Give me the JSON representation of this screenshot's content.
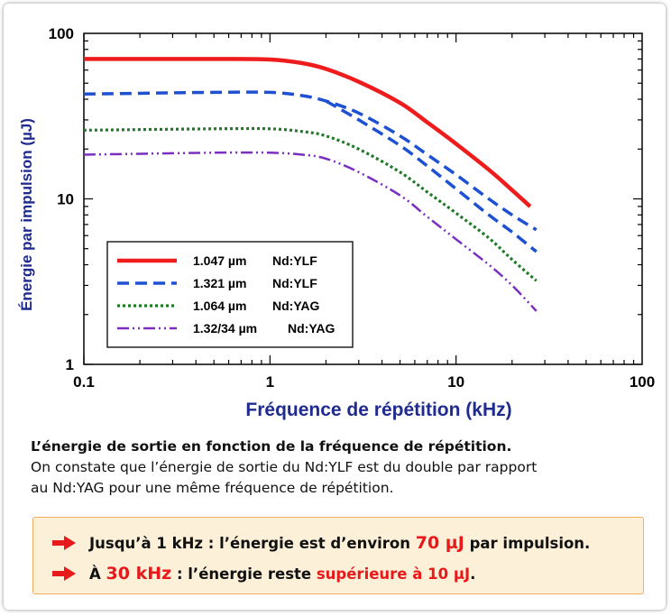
{
  "chart_data": {
    "type": "line",
    "x_scale": "log",
    "y_scale": "log",
    "xlim": [
      0.1,
      100
    ],
    "ylim": [
      1,
      100
    ],
    "xlabel": "Fréquence de répétition (kHz)",
    "ylabel": "Énergie par impulsion (µJ)",
    "x_ticks": [
      "0.1",
      "1",
      "10",
      "100"
    ],
    "y_ticks": [
      "1",
      "10",
      "100"
    ],
    "grid": false,
    "legend_position": "bottom-left",
    "series": [
      {
        "name": "1.047 µm  Nd:YLF",
        "color": "#ee1c1c",
        "style": "solid",
        "points": [
          [
            0.1,
            70
          ],
          [
            0.5,
            70
          ],
          [
            1,
            69.5
          ],
          [
            1.5,
            66
          ],
          [
            2,
            61
          ],
          [
            3,
            51
          ],
          [
            5,
            38
          ],
          [
            7,
            29
          ],
          [
            10,
            21.5
          ],
          [
            15,
            15
          ],
          [
            20,
            11.3
          ],
          [
            25,
            9
          ]
        ]
      },
      {
        "name": "1.321 µm  Nd:YLF",
        "color": "#1e50d2",
        "style": "dashed",
        "points": [
          [
            0.1,
            43
          ],
          [
            0.5,
            44
          ],
          [
            1,
            44
          ],
          [
            1.5,
            42
          ],
          [
            2,
            39
          ],
          [
            3,
            33
          ],
          [
            5,
            24
          ],
          [
            7,
            18.5
          ],
          [
            10,
            14
          ],
          [
            15,
            10
          ],
          [
            20,
            8
          ],
          [
            27,
            6.5
          ]
        ]
      },
      {
        "name": "1.321 µm  Nd:YLF (2)",
        "color": "#1e50d2",
        "style": "dashed",
        "points": [
          [
            2,
            39
          ],
          [
            3,
            30
          ],
          [
            5,
            21
          ],
          [
            7,
            15.8
          ],
          [
            10,
            11.5
          ],
          [
            15,
            8
          ],
          [
            20,
            6.3
          ],
          [
            27,
            4.8
          ]
        ]
      },
      {
        "name": "1.064 µm  Nd:YAG",
        "color": "#1f7a27",
        "style": "dotted",
        "points": [
          [
            0.1,
            26
          ],
          [
            0.5,
            26.5
          ],
          [
            1,
            26.5
          ],
          [
            1.5,
            25.5
          ],
          [
            2,
            24
          ],
          [
            3,
            20
          ],
          [
            5,
            14.5
          ],
          [
            7,
            11
          ],
          [
            10,
            8.2
          ],
          [
            15,
            5.8
          ],
          [
            20,
            4.3
          ],
          [
            27,
            3.2
          ]
        ]
      },
      {
        "name": "1.32/34 µm  Nd:YAG",
        "color": "#7a2fc0",
        "style": "dashdot",
        "points": [
          [
            0.1,
            18.5
          ],
          [
            0.5,
            19
          ],
          [
            1,
            19
          ],
          [
            1.5,
            18.5
          ],
          [
            2,
            17.5
          ],
          [
            3,
            14.5
          ],
          [
            5,
            10.5
          ],
          [
            7,
            7.8
          ],
          [
            10,
            5.7
          ],
          [
            15,
            4
          ],
          [
            20,
            3
          ],
          [
            27,
            2.1
          ]
        ]
      }
    ]
  },
  "legend": [
    {
      "value": "1.047 µm",
      "material": "Nd:YLF",
      "color": "#ee1c1c",
      "style": "solid"
    },
    {
      "value": "1.321 µm",
      "material": "Nd:YLF",
      "color": "#1e50d2",
      "style": "dashed"
    },
    {
      "value": "1.064 µm",
      "material": "Nd:YAG",
      "color": "#1f7a27",
      "style": "dotted"
    },
    {
      "value": "1.32/34 µm",
      "material": "Nd:YAG",
      "color": "#7a2fc0",
      "style": "dashdot"
    }
  ],
  "caption": {
    "line1": "L’énergie de sortie en fonction de la fréquence de répétition.",
    "line2": "On constate que l’énergie de sortie du Nd:YLF est du double par rapport",
    "line3": "au Nd:YAG pour une même fréquence de répétition."
  },
  "callout": {
    "row1_prefix": "Jusqu’à 1 kHz : l’énergie est d’environ ",
    "row1_value": "70 µJ",
    "row1_suffix": " par impulsion.",
    "row2_prefix": "À ",
    "row2_freq": "30 kHz",
    "row2_mid": " : l’énergie reste ",
    "row2_value": "supérieure à 10 µJ",
    "row2_suffix": ".",
    "arrow_icon": "right-arrow-icon",
    "accent_color": "#e8191a"
  }
}
